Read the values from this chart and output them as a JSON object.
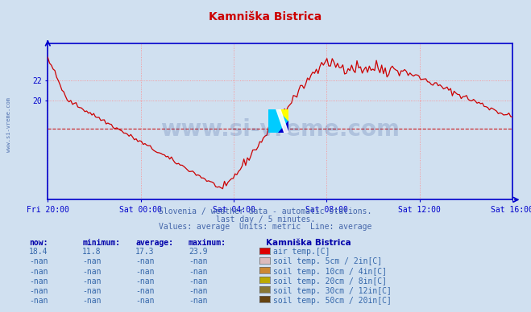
{
  "title": "Kamniška Bistrica",
  "title_color": "#cc0000",
  "bg_color": "#d0e0f0",
  "plot_bg_color": "#d0e0f0",
  "axis_color": "#0000cc",
  "grid_color": "#ff8888",
  "grid_style": ":",
  "line_color": "#cc0000",
  "avg_line_color": "#cc0000",
  "avg_line_style": "--",
  "avg_value": 17.3,
  "y_min": 10.5,
  "y_max": 25.5,
  "y_ticks": [
    20,
    22
  ],
  "x_labels": [
    "Fri 20:00",
    "Sat 00:00",
    "Sat 04:00",
    "Sat 08:00",
    "Sat 12:00",
    "Sat 16:00"
  ],
  "watermark": "www.si-vreme.com",
  "watermark_color": "#1a3a8a",
  "watermark_alpha": 0.18,
  "subtitle1": "Slovenia / weather data - automatic stations.",
  "subtitle2": "last day / 5 minutes.",
  "subtitle3": "Values: average  Units: metric  Line: average",
  "subtitle_color": "#4466aa",
  "legend_title": "Kamniška Bistrica",
  "legend_items": [
    {
      "label": "air temp.[C]",
      "color": "#dd0000",
      "now": "18.4",
      "min": "11.8",
      "avg": "17.3",
      "max": "23.9"
    },
    {
      "label": "soil temp. 5cm / 2in[C]",
      "color": "#ddbbbb",
      "now": "-nan",
      "min": "-nan",
      "avg": "-nan",
      "max": "-nan"
    },
    {
      "label": "soil temp. 10cm / 4in[C]",
      "color": "#cc8833",
      "now": "-nan",
      "min": "-nan",
      "avg": "-nan",
      "max": "-nan"
    },
    {
      "label": "soil temp. 20cm / 8in[C]",
      "color": "#bbaa00",
      "now": "-nan",
      "min": "-nan",
      "avg": "-nan",
      "max": "-nan"
    },
    {
      "label": "soil temp. 30cm / 12in[C]",
      "color": "#887733",
      "now": "-nan",
      "min": "-nan",
      "avg": "-nan",
      "max": "-nan"
    },
    {
      "label": "soil temp. 50cm / 20in[C]",
      "color": "#664411",
      "now": "-nan",
      "min": "-nan",
      "avg": "-nan",
      "max": "-nan"
    }
  ],
  "col_headers": [
    "now:",
    "minimum:",
    "average:",
    "maximum:"
  ],
  "left_label": "www.si-vreme.com",
  "left_label_color": "#4466aa",
  "figwidth": 6.59,
  "figheight": 3.88,
  "dpi": 100
}
